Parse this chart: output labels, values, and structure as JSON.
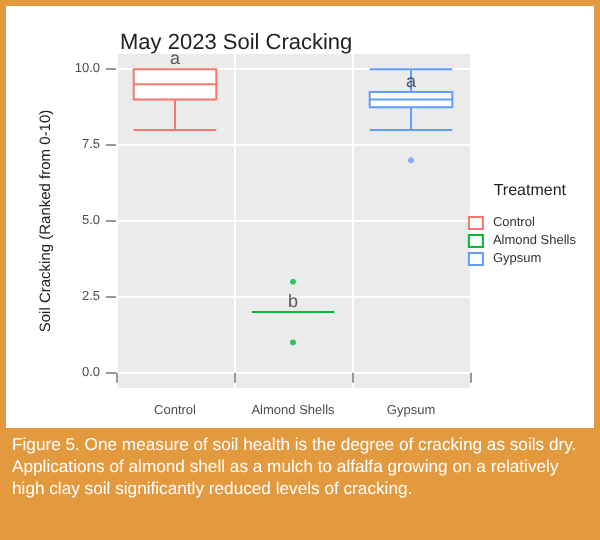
{
  "chart_data": {
    "type": "box",
    "title": "May 2023 Soil Cracking",
    "ylabel": "Soil Cracking (Ranked from 0-10)",
    "legend_title": "Treatment",
    "categories": [
      "Control",
      "Almond Shells",
      "Gypsum"
    ],
    "series": [
      {
        "name": "Control",
        "color": "#f8766d",
        "boxes": [
          {
            "low": 8,
            "q1": 9,
            "median": 9.5,
            "q3": 10,
            "high": 10
          },
          null,
          null
        ]
      },
      {
        "name": "Almond Shells",
        "color": "#00ba38",
        "boxes": [
          null,
          {
            "low": 2,
            "q1": 2,
            "median": 2,
            "q3": 2,
            "high": 2,
            "outliers": [
              3,
              1
            ]
          },
          null
        ]
      },
      {
        "name": "Gypsum",
        "color": "#619cff",
        "boxes": [
          null,
          null,
          {
            "low": 8,
            "q1": 8.75,
            "median": 9,
            "q3": 9.25,
            "high": 10,
            "outliers": [
              7
            ]
          }
        ]
      }
    ],
    "ylim": [
      -0.5,
      10.5
    ],
    "yticks": [
      {
        "value": 0,
        "label": "0.0"
      },
      {
        "value": 2.5,
        "label": "2.5"
      },
      {
        "value": 5,
        "label": "5.0"
      },
      {
        "value": 7.5,
        "label": "7.5"
      },
      {
        "value": 10,
        "label": "10.0"
      }
    ],
    "grid": true,
    "legend": "right",
    "annotations": [
      {
        "text": "a",
        "x": "Control",
        "y": 10
      },
      {
        "text": "b",
        "x": "Almond Shells",
        "y": 2
      },
      {
        "text": "a",
        "x": "Gypsum",
        "y": 9.25
      },
      "Figure 5. One measure of soil health is the degree of cracking as soils dry. Applications of almond shell as a mulch to alfalfa growing on a relatively high clay soil significantly reduced levels of cracking."
    ]
  }
}
